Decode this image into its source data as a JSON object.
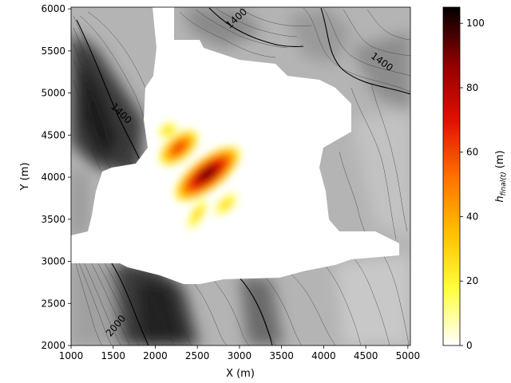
{
  "chart_data": {
    "type": "heatmap",
    "xlabel": "X (m)",
    "ylabel": "Y (m)",
    "xlim": [
      1000,
      5030
    ],
    "ylim": [
      2000,
      6020
    ],
    "x_ticks": [
      1000,
      1500,
      2000,
      2500,
      3000,
      3500,
      4000,
      4500,
      5000
    ],
    "y_ticks": [
      2000,
      2500,
      3000,
      3500,
      4000,
      4500,
      5000,
      5500,
      6000
    ],
    "colorbar": {
      "label_main": "h",
      "label_sub": "final(t)",
      "label_unit": "(m)",
      "range": [
        0,
        105
      ],
      "ticks": [
        0,
        20,
        40,
        60,
        80,
        100
      ],
      "colormap": [
        "#ffffff",
        "#ffff40",
        "#ffbf00",
        "#ff7000",
        "#e01000",
        "#900000",
        "#000000"
      ]
    },
    "contour_labels": [
      {
        "text": "1400",
        "x": 2990,
        "y": 5860,
        "angle": -42
      },
      {
        "text": "1400",
        "x": 4670,
        "y": 5340,
        "angle": 36
      },
      {
        "text": "1400",
        "x": 1570,
        "y": 4730,
        "angle": 44
      },
      {
        "text": "2000",
        "x": 1560,
        "y": 2210,
        "angle": -50
      }
    ],
    "deposit_blobs": [
      {
        "x": 2620,
        "y": 4040,
        "rx": 500,
        "ry": 200,
        "angle": -38,
        "h": 105
      },
      {
        "x": 2280,
        "y": 4350,
        "rx": 300,
        "ry": 160,
        "angle": -40,
        "h": 80
      },
      {
        "x": 2840,
        "y": 3680,
        "rx": 220,
        "ry": 110,
        "angle": -45,
        "h": 30
      },
      {
        "x": 2500,
        "y": 3560,
        "rx": 260,
        "ry": 100,
        "angle": -60,
        "h": 35
      },
      {
        "x": 2150,
        "y": 4560,
        "rx": 160,
        "ry": 110,
        "angle": -30,
        "h": 40
      }
    ]
  }
}
